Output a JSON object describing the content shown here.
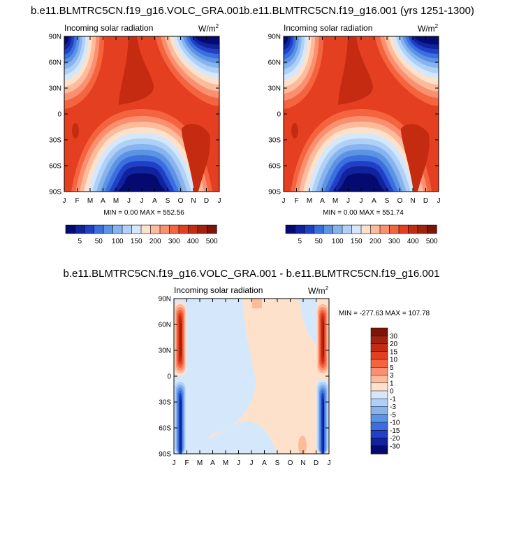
{
  "palette": {
    "warm": [
      "#fee1cb",
      "#fcbb9b",
      "#fb9070",
      "#f4643f",
      "#e43f20",
      "#c42b10",
      "#a0220f",
      "#7c1508"
    ],
    "cool": [
      "#d5e8fb",
      "#b0d1f7",
      "#87b4ee",
      "#5c93e5",
      "#3b6fde",
      "#2040c8",
      "#10229c",
      "#040a70"
    ]
  },
  "chart_data": [
    {
      "id": "left",
      "type": "heatmap",
      "title": "b.e11.BLMTRC5CN.f19_g16.VOLC_GRA.001",
      "plot_label": "Incoming solar radiation",
      "units_base": "W/m",
      "units_exp": "2",
      "x_ticks": [
        "J",
        "F",
        "M",
        "A",
        "M",
        "J",
        "J",
        "A",
        "S",
        "O",
        "N",
        "D",
        "J"
      ],
      "y_ticks": [
        "90N",
        "60N",
        "30N",
        "0",
        "30S",
        "60S",
        "90S"
      ],
      "stats": "MIN =   0.00 MAX = 552.56",
      "colorbar_levels": [
        "5",
        "50",
        "100",
        "150",
        "200",
        "300",
        "400",
        "500"
      ],
      "min": 0.0,
      "max": 552.56
    },
    {
      "id": "right",
      "type": "heatmap",
      "title": "b.e11.BLMTRC5CN.f19_g16.001 (yrs 1251-1300)",
      "plot_label": "Incoming solar radiation",
      "units_base": "W/m",
      "units_exp": "2",
      "x_ticks": [
        "J",
        "F",
        "M",
        "A",
        "M",
        "J",
        "J",
        "A",
        "S",
        "O",
        "N",
        "D",
        "J"
      ],
      "y_ticks": [
        "90N",
        "60N",
        "30N",
        "0",
        "30S",
        "60S",
        "90S"
      ],
      "stats": "MIN =   0.00 MAX = 551.74",
      "colorbar_levels": [
        "5",
        "50",
        "100",
        "150",
        "200",
        "300",
        "400",
        "500"
      ],
      "min": 0.0,
      "max": 551.74
    },
    {
      "id": "diff",
      "type": "heatmap",
      "title": "b.e11.BLMTRC5CN.f19_g16.VOLC_GRA.001 - b.e11.BLMTRC5CN.f19_g16.001",
      "plot_label": "Incoming solar radiation",
      "units_base": "W/m",
      "units_exp": "2",
      "x_ticks": [
        "J",
        "F",
        "M",
        "A",
        "M",
        "J",
        "J",
        "A",
        "S",
        "O",
        "N",
        "D",
        "J"
      ],
      "y_ticks": [
        "90N",
        "60N",
        "30N",
        "0",
        "30S",
        "60S",
        "90S"
      ],
      "stats": "MIN = -277.63 MAX = 107.78",
      "colorbar_levels": [
        "30",
        "20",
        "15",
        "10",
        "5",
        "3",
        "1",
        "0",
        "-1",
        "-3",
        "-5",
        "-10",
        "-15",
        "-20",
        "-30"
      ],
      "min": -277.63,
      "max": 107.78
    }
  ]
}
